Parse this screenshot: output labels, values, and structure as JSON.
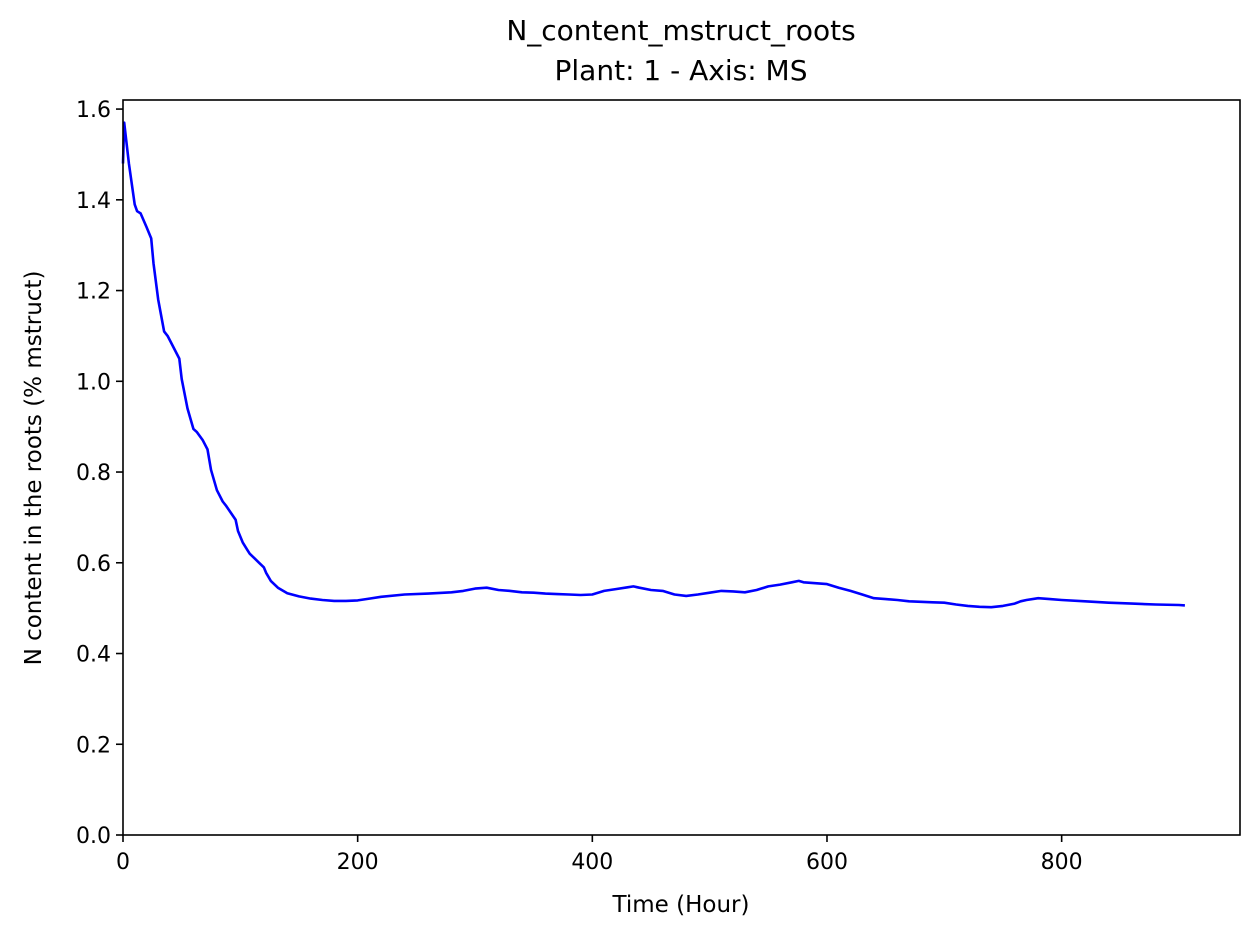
{
  "chart_data": {
    "type": "line",
    "title": "N_content_mstruct_roots",
    "subtitle": "Plant: 1 - Axis: MS",
    "xlabel": "Time (Hour)",
    "ylabel": "N content in the roots (% mstruct)",
    "xlim": [
      0,
      952
    ],
    "ylim": [
      0.0,
      1.62
    ],
    "xticks": [
      0,
      200,
      400,
      600,
      800
    ],
    "xtick_labels": [
      "0",
      "200",
      "400",
      "600",
      "800"
    ],
    "yticks": [
      0.0,
      0.2,
      0.4,
      0.6,
      0.8,
      1.0,
      1.2,
      1.4,
      1.6
    ],
    "ytick_labels": [
      "0.0",
      "0.2",
      "0.4",
      "0.6",
      "0.8",
      "1.0",
      "1.2",
      "1.4",
      "1.6"
    ],
    "grid": false,
    "series": [
      {
        "color": "#0000ff",
        "x": [
          0,
          1,
          5,
          10,
          12,
          15,
          20,
          24,
          26,
          30,
          35,
          38,
          42,
          48,
          50,
          55,
          60,
          63,
          68,
          72,
          75,
          80,
          85,
          88,
          92,
          96,
          98,
          102,
          106,
          108,
          112,
          116,
          120,
          122,
          126,
          132,
          140,
          150,
          160,
          170,
          180,
          190,
          200,
          210,
          220,
          240,
          260,
          280,
          290,
          300,
          310,
          320,
          330,
          340,
          350,
          360,
          370,
          380,
          390,
          400,
          410,
          420,
          430,
          435,
          440,
          450,
          460,
          470,
          480,
          490,
          500,
          510,
          520,
          530,
          540,
          550,
          560,
          570,
          576,
          580,
          590,
          600,
          610,
          620,
          630,
          640,
          650,
          660,
          670,
          680,
          690,
          700,
          710,
          720,
          730,
          740,
          750,
          760,
          765,
          770,
          780,
          790,
          800,
          820,
          840,
          860,
          880,
          900,
          905
        ],
        "y": [
          1.48,
          1.57,
          1.48,
          1.39,
          1.375,
          1.37,
          1.34,
          1.315,
          1.26,
          1.18,
          1.11,
          1.1,
          1.08,
          1.05,
          1.005,
          0.94,
          0.895,
          0.888,
          0.87,
          0.85,
          0.805,
          0.76,
          0.735,
          0.725,
          0.71,
          0.695,
          0.67,
          0.645,
          0.628,
          0.62,
          0.61,
          0.6,
          0.59,
          0.578,
          0.56,
          0.545,
          0.533,
          0.526,
          0.521,
          0.518,
          0.516,
          0.516,
          0.517,
          0.521,
          0.525,
          0.53,
          0.532,
          0.535,
          0.538,
          0.543,
          0.545,
          0.54,
          0.538,
          0.535,
          0.534,
          0.532,
          0.531,
          0.53,
          0.529,
          0.53,
          0.538,
          0.542,
          0.546,
          0.548,
          0.545,
          0.54,
          0.538,
          0.53,
          0.527,
          0.53,
          0.534,
          0.538,
          0.537,
          0.535,
          0.54,
          0.548,
          0.552,
          0.557,
          0.56,
          0.557,
          0.555,
          0.553,
          0.545,
          0.538,
          0.53,
          0.522,
          0.52,
          0.518,
          0.515,
          0.514,
          0.513,
          0.512,
          0.508,
          0.505,
          0.503,
          0.502,
          0.505,
          0.51,
          0.515,
          0.518,
          0.522,
          0.52,
          0.518,
          0.515,
          0.512,
          0.51,
          0.508,
          0.507,
          0.506
        ]
      }
    ]
  }
}
